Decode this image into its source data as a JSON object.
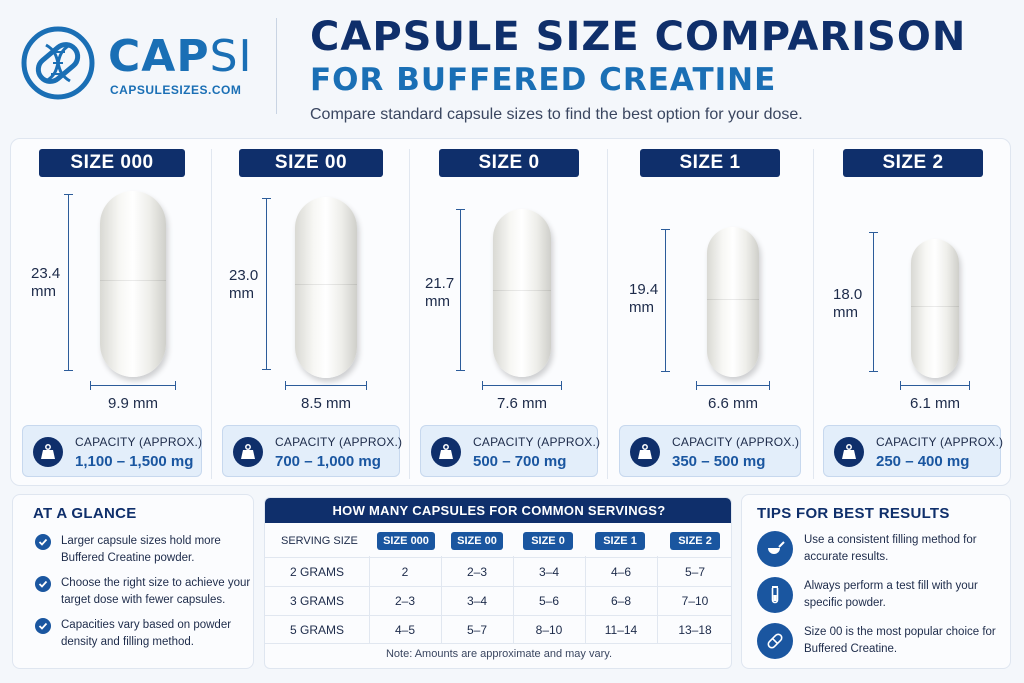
{
  "logo": {
    "word_main": "CAP",
    "word_accent": "SI",
    "url": "CAPSULESIZES.COM"
  },
  "header": {
    "title": "CAPSULE SIZE COMPARISON",
    "subtitle": "FOR BUFFERED CREATINE",
    "tagline": "Compare standard capsule sizes to find the best option for your dose."
  },
  "capsules": [
    {
      "size": "SIZE 000",
      "length_value": "23.4",
      "length_unit": "mm",
      "width": "9.9 mm",
      "capacity_label": "CAPACITY (APPROX.)",
      "capacity": "1,100 – 1,500 mg"
    },
    {
      "size": "SIZE 00",
      "length_value": "23.0",
      "length_unit": "mm",
      "width": "8.5 mm",
      "capacity_label": "CAPACITY (APPROX.)",
      "capacity": "700 – 1,000 mg"
    },
    {
      "size": "SIZE 0",
      "length_value": "21.7",
      "length_unit": "mm",
      "width": "7.6 mm",
      "capacity_label": "CAPACITY (APPROX.)",
      "capacity": "500 – 700 mg"
    },
    {
      "size": "SIZE 1",
      "length_value": "19.4",
      "length_unit": "mm",
      "width": "6.6 mm",
      "capacity_label": "CAPACITY (APPROX.)",
      "capacity": "350 – 500 mg"
    },
    {
      "size": "SIZE 2",
      "length_value": "18.0",
      "length_unit": "mm",
      "width": "6.1 mm",
      "capacity_label": "CAPACITY (APPROX.)",
      "capacity": "250 – 400 mg"
    }
  ],
  "glance": {
    "heading": "AT A GLANCE",
    "items": [
      "Larger capsule sizes hold more Buffered Creatine powder.",
      "Choose the right size to achieve your target dose with fewer capsules.",
      "Capacities vary based on powder density and filling method."
    ]
  },
  "table": {
    "heading": "HOW MANY CAPSULES FOR COMMON SERVINGS?",
    "serving_label": "SERVING SIZE",
    "columns": [
      "SIZE 000",
      "SIZE 00",
      "SIZE 0",
      "SIZE 1",
      "SIZE 2"
    ],
    "rows": [
      {
        "serving": "2 GRAMS",
        "values": [
          "2",
          "2–3",
          "3–4",
          "4–6",
          "5–7"
        ]
      },
      {
        "serving": "3 GRAMS",
        "values": [
          "2–3",
          "3–4",
          "5–6",
          "6–8",
          "7–10"
        ]
      },
      {
        "serving": "5 GRAMS",
        "values": [
          "4–5",
          "5–7",
          "8–10",
          "11–14",
          "13–18"
        ]
      }
    ],
    "note": "Note: Amounts are approximate and may vary."
  },
  "tips": {
    "heading": "TIPS FOR BEST RESULTS",
    "items": [
      {
        "icon": "scoop-icon",
        "text": "Use a consistent filling method for accurate results."
      },
      {
        "icon": "test-tube-icon",
        "text": "Always perform a test fill with your specific powder."
      },
      {
        "icon": "capsule-icon",
        "text": "Size 00 is the most popular choice for Buffered Creatine."
      }
    ]
  },
  "colors": {
    "navy": "#0f2f6b",
    "accent_blue": "#1a6fb5",
    "capacity_blue": "#1a56a0",
    "panel_bg": "#e3eefa"
  }
}
